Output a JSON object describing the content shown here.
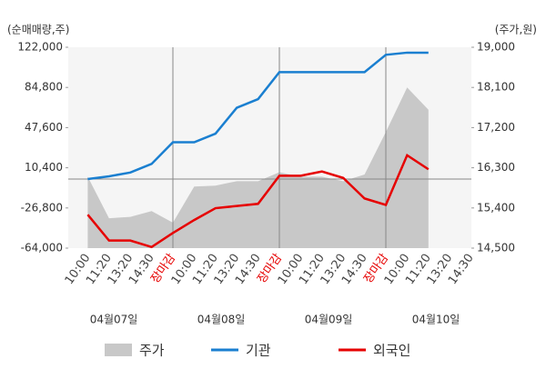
{
  "chart_data": {
    "type": "line",
    "y_label": "(순매매량,주)",
    "y2_label": "(주가,원)",
    "categories": [
      "10:00",
      "11:20",
      "13:20",
      "14:30",
      "장마감",
      "10:00",
      "11:20",
      "13:20",
      "14:30",
      "장마감",
      "10:00",
      "11:20",
      "13:20",
      "14:30",
      "장마감",
      "10:00",
      "11:20",
      "13:20",
      "14:30"
    ],
    "highlight_categories": [
      "장마감"
    ],
    "highlight_color": "#e60000",
    "dates": [
      "04월07일",
      "04월08일",
      "04월09일",
      "04월10일"
    ],
    "ylim": [
      -64000,
      122000
    ],
    "yticks": [
      {
        "value": 122000,
        "label": "122,000"
      },
      {
        "value": 84800,
        "label": "84,800"
      },
      {
        "value": 47600,
        "label": "47,600"
      },
      {
        "value": 10400,
        "label": "10,400"
      },
      {
        "value": -26800,
        "label": "-26,800"
      },
      {
        "value": -64000,
        "label": "-64,000"
      }
    ],
    "y2lim": [
      14500,
      19000
    ],
    "y2ticks": [
      {
        "value": 19000,
        "label": "19,000"
      },
      {
        "value": 18100,
        "label": "18,100"
      },
      {
        "value": 17200,
        "label": "17,200"
      },
      {
        "value": 16300,
        "label": "16,300"
      },
      {
        "value": 15400,
        "label": "15,400"
      },
      {
        "value": 14500,
        "label": "14,500"
      }
    ],
    "series": [
      {
        "name": "주가",
        "type": "area",
        "axis": "y2",
        "color": "#c8c8c8",
        "values": [
          16100,
          15170,
          15200,
          15330,
          15070,
          15880,
          15900,
          16000,
          16000,
          16200,
          16100,
          16100,
          16000,
          16150,
          17100,
          18100,
          17600,
          null,
          null
        ]
      },
      {
        "name": "기관",
        "color": "#1a7fd0",
        "values": [
          0,
          2500,
          6000,
          14000,
          34000,
          34000,
          42000,
          66000,
          74000,
          99000,
          99000,
          99000,
          99000,
          99000,
          115000,
          117000,
          117000,
          null,
          null
        ]
      },
      {
        "name": "외국인",
        "color": "#e60000",
        "values": [
          -33000,
          -57000,
          -57000,
          -63000,
          -50000,
          -38000,
          -27000,
          -25000,
          -23000,
          3000,
          3000,
          7000,
          1000,
          -18000,
          -24000,
          22000,
          9000,
          null,
          null
        ]
      }
    ]
  }
}
